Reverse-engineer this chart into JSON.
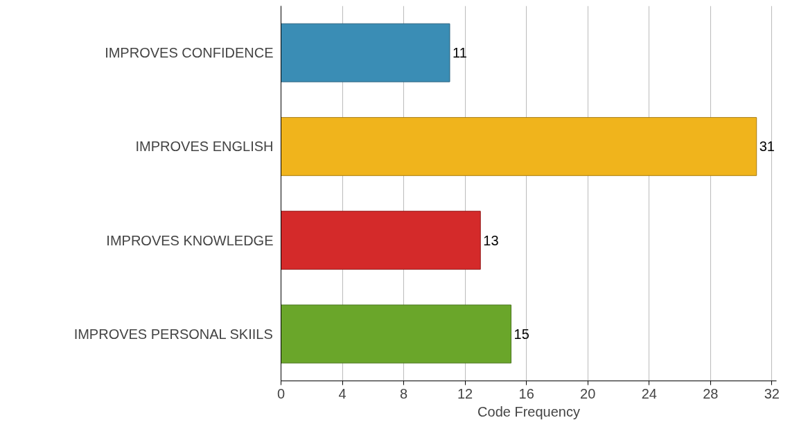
{
  "chart_data": {
    "type": "bar",
    "orientation": "horizontal",
    "xlabel": "Code Frequency",
    "categories": [
      "IMPROVES CONFIDENCE",
      "IMPROVES ENGLISH",
      "IMPROVES KNOWLEDGE",
      "IMPROVES PERSONAL SKIILS"
    ],
    "values": [
      11,
      31,
      13,
      15
    ],
    "colors": [
      "#3a8db5",
      "#f0b41c",
      "#d42a2a",
      "#6aa62a"
    ],
    "xlim": [
      0,
      32.3
    ],
    "xticks": [
      0,
      4,
      8,
      12,
      16,
      20,
      24,
      28,
      32
    ],
    "grid": "x",
    "data_labels": true
  }
}
